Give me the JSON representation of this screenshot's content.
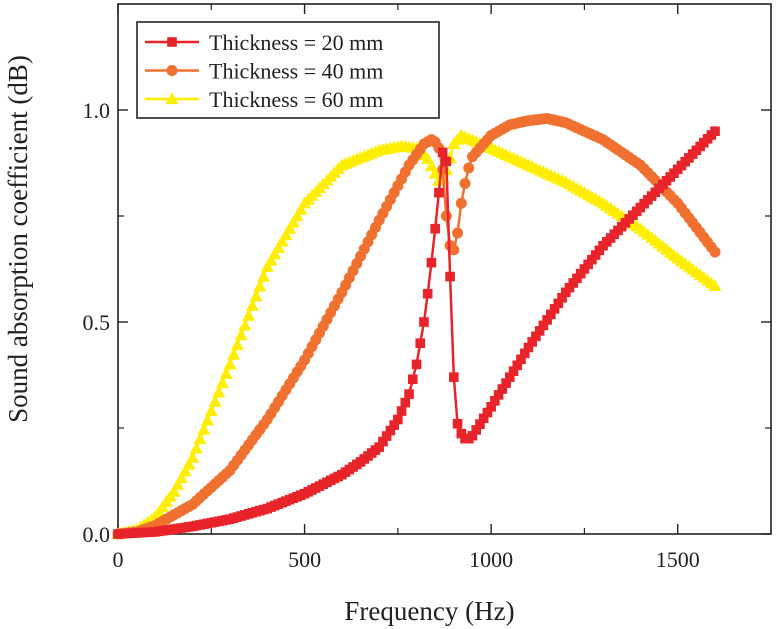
{
  "chart_data": {
    "type": "line",
    "title": "",
    "xlabel": "Frequency (Hz)",
    "ylabel": "Sound absorption coefficient (dB)",
    "xlim": [
      0,
      1750
    ],
    "ylim": [
      0,
      1.25
    ],
    "xticks": [
      0,
      500,
      1000,
      1500
    ],
    "xtick_labels": [
      "0",
      "500",
      "1000",
      "1500"
    ],
    "yticks": [
      0,
      0.5,
      1.0
    ],
    "ytick_labels": [
      "0.0",
      "0.5",
      "1.0"
    ],
    "legend_position": "top-left",
    "series": [
      {
        "name": "Thickness = 20 mm",
        "color": "#e8242a",
        "marker": "square",
        "points": [
          [
            0,
            0.0
          ],
          [
            100,
            0.005
          ],
          [
            200,
            0.018
          ],
          [
            300,
            0.035
          ],
          [
            400,
            0.06
          ],
          [
            500,
            0.095
          ],
          [
            600,
            0.14
          ],
          [
            650,
            0.17
          ],
          [
            700,
            0.205
          ],
          [
            750,
            0.27
          ],
          [
            780,
            0.33
          ],
          [
            800,
            0.4
          ],
          [
            820,
            0.5
          ],
          [
            835,
            0.6
          ],
          [
            845,
            0.68
          ],
          [
            855,
            0.76
          ],
          [
            865,
            0.85
          ],
          [
            872,
            0.92
          ],
          [
            878,
            0.93
          ],
          [
            885,
            0.75
          ],
          [
            892,
            0.55
          ],
          [
            900,
            0.37
          ],
          [
            910,
            0.26
          ],
          [
            925,
            0.225
          ],
          [
            945,
            0.225
          ],
          [
            1000,
            0.3
          ],
          [
            1100,
            0.44
          ],
          [
            1200,
            0.57
          ],
          [
            1300,
            0.68
          ],
          [
            1400,
            0.77
          ],
          [
            1500,
            0.86
          ],
          [
            1600,
            0.95
          ]
        ]
      },
      {
        "name": "Thickness = 40 mm",
        "color": "#f07030",
        "marker": "circle",
        "points": [
          [
            0,
            0.0
          ],
          [
            50,
            0.005
          ],
          [
            100,
            0.02
          ],
          [
            200,
            0.07
          ],
          [
            300,
            0.15
          ],
          [
            400,
            0.27
          ],
          [
            500,
            0.41
          ],
          [
            600,
            0.57
          ],
          [
            700,
            0.74
          ],
          [
            780,
            0.87
          ],
          [
            820,
            0.92
          ],
          [
            840,
            0.93
          ],
          [
            858,
            0.92
          ],
          [
            870,
            0.86
          ],
          [
            880,
            0.75
          ],
          [
            890,
            0.68
          ],
          [
            900,
            0.67
          ],
          [
            910,
            0.71
          ],
          [
            920,
            0.78
          ],
          [
            935,
            0.85
          ],
          [
            950,
            0.89
          ],
          [
            1000,
            0.94
          ],
          [
            1050,
            0.965
          ],
          [
            1100,
            0.975
          ],
          [
            1150,
            0.98
          ],
          [
            1200,
            0.97
          ],
          [
            1300,
            0.93
          ],
          [
            1400,
            0.87
          ],
          [
            1500,
            0.78
          ],
          [
            1600,
            0.665
          ]
        ]
      },
      {
        "name": "Thickness = 60 mm",
        "color": "#ffee00",
        "marker": "triangle",
        "points": [
          [
            0,
            0.0
          ],
          [
            50,
            0.01
          ],
          [
            100,
            0.04
          ],
          [
            150,
            0.1
          ],
          [
            200,
            0.18
          ],
          [
            300,
            0.4
          ],
          [
            400,
            0.63
          ],
          [
            500,
            0.78
          ],
          [
            600,
            0.87
          ],
          [
            700,
            0.905
          ],
          [
            760,
            0.915
          ],
          [
            800,
            0.91
          ],
          [
            830,
            0.885
          ],
          [
            850,
            0.85
          ],
          [
            862,
            0.83
          ],
          [
            872,
            0.84
          ],
          [
            885,
            0.87
          ],
          [
            900,
            0.92
          ],
          [
            920,
            0.94
          ],
          [
            1000,
            0.91
          ],
          [
            1100,
            0.87
          ],
          [
            1200,
            0.83
          ],
          [
            1300,
            0.78
          ],
          [
            1400,
            0.72
          ],
          [
            1500,
            0.65
          ],
          [
            1600,
            0.585
          ]
        ]
      }
    ]
  }
}
